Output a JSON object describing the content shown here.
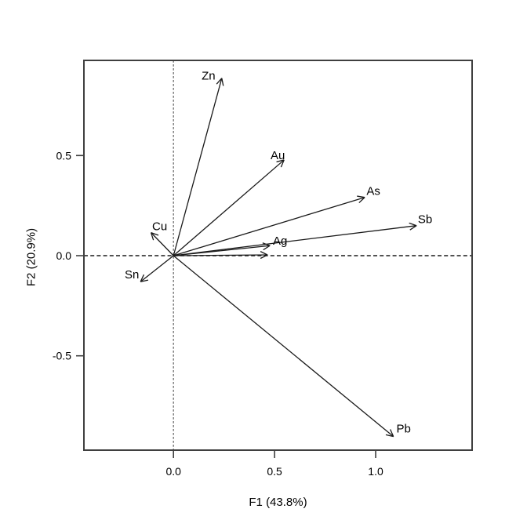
{
  "chart_data": {
    "type": "scatter",
    "subtype": "pca-biplot-loadings",
    "title": "",
    "xlabel": "F1 (43.8%)",
    "ylabel": "F2 (20.9%)",
    "xlim": [
      -0.443,
      1.477
    ],
    "ylim": [
      -0.971,
      0.975
    ],
    "grid": false,
    "legend": "none",
    "x_ticks": [
      {
        "value": 0.0,
        "label": "0.0"
      },
      {
        "value": 0.5,
        "label": "0.5"
      },
      {
        "value": 1.0,
        "label": "1.0"
      }
    ],
    "y_ticks": [
      {
        "value": -0.5,
        "label": "-0.5"
      },
      {
        "value": 0.0,
        "label": "0.0"
      },
      {
        "value": 0.5,
        "label": "0.5"
      }
    ],
    "reference_lines": {
      "vertical_x": 0.0,
      "horizontal_y": 0.0
    },
    "arrows": [
      {
        "label": "Zn",
        "x": 0.239,
        "y": 0.886,
        "label_dx": -17,
        "label_dy": -3
      },
      {
        "label": "Au",
        "x": 0.547,
        "y": 0.478,
        "label_dx": -8,
        "label_dy": -6
      },
      {
        "label": "As",
        "x": 0.946,
        "y": 0.291,
        "label_dx": 11,
        "label_dy": -8
      },
      {
        "label": "Sb",
        "x": 1.202,
        "y": 0.15,
        "label_dx": 11,
        "label_dy": -8
      },
      {
        "label": "Ag",
        "x": 0.477,
        "y": 0.05,
        "label_dx": 13,
        "label_dy": -6
      },
      {
        "label": "",
        "x": 0.465,
        "y": 0.004,
        "label_dx": 0,
        "label_dy": 0
      },
      {
        "label": "Cu",
        "x": -0.111,
        "y": 0.115,
        "label_dx": 11,
        "label_dy": -8
      },
      {
        "label": "Sn",
        "x": -0.163,
        "y": -0.13,
        "label_dx": -11,
        "label_dy": -9
      },
      {
        "label": "Pb",
        "x": 1.088,
        "y": -0.903,
        "label_dx": 13,
        "label_dy": -10
      }
    ],
    "colors": {
      "background": "#ffffff",
      "border": "#3f3f3f",
      "arrow": "#1a1a1a",
      "text": "#000000",
      "horizontal_dash": "#1a1a1a",
      "vertical_dash": "#7f7f7f"
    }
  }
}
